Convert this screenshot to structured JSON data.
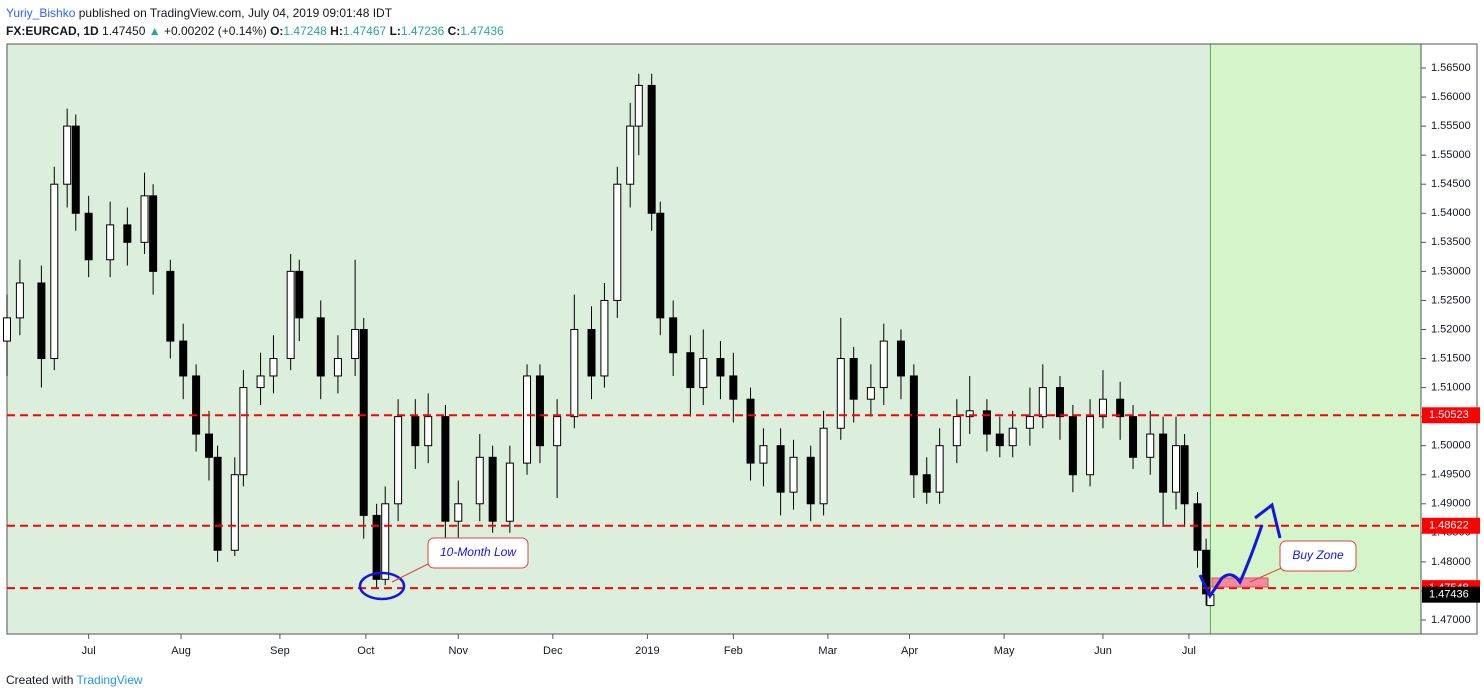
{
  "header": {
    "author": "Yuriy_Bishko",
    "published": "published on TradingView.com, July 04, 2019 09:01:48 IDT",
    "symbol": "FX:EURCAD, 1D",
    "last": "1.47450",
    "arrow": "▲",
    "change": "+0.00202 (+0.14%)",
    "open_label": "O:",
    "open": "1.47248",
    "high_label": "H:",
    "high": "1.47467",
    "low_label": "L:",
    "low": "1.47236",
    "close_label": "C:",
    "close": "1.47436"
  },
  "footer": {
    "text": "Created with",
    "brand": "TradingView"
  },
  "chart_data": {
    "type": "candlestick",
    "xlim": [
      0,
      329
    ],
    "xticks": [
      {
        "value": 19,
        "label": "Jul"
      },
      {
        "value": 40.5,
        "label": "Aug"
      },
      {
        "value": 63.5,
        "label": "Sep"
      },
      {
        "value": 83.5,
        "label": "Oct"
      },
      {
        "value": 105,
        "label": "Nov"
      },
      {
        "value": 127,
        "label": "Dec"
      },
      {
        "value": 149,
        "label": "2019"
      },
      {
        "value": 169,
        "label": "Feb"
      },
      {
        "value": 191,
        "label": "Mar"
      },
      {
        "value": 210,
        "label": "Apr"
      },
      {
        "value": 232,
        "label": "May"
      },
      {
        "value": 255,
        "label": "Jun"
      },
      {
        "value": 275,
        "label": "Jul"
      }
    ],
    "ylim": [
      1.46759,
      1.56913
    ],
    "yticks": [
      {
        "value": 1.47,
        "label": "1.47000"
      },
      {
        "value": 1.475,
        "label": "1.47500"
      },
      {
        "value": 1.48,
        "label": "1.48000"
      },
      {
        "value": 1.485,
        "label": "1.48500"
      },
      {
        "value": 1.49,
        "label": "1.49000"
      },
      {
        "value": 1.495,
        "label": "1.49500"
      },
      {
        "value": 1.5,
        "label": "1.50000"
      },
      {
        "value": 1.505,
        "label": "1.50500"
      },
      {
        "value": 1.51,
        "label": "1.51000"
      },
      {
        "value": 1.515,
        "label": "1.51500"
      },
      {
        "value": 1.52,
        "label": "1.52000"
      },
      {
        "value": 1.525,
        "label": "1.52500"
      },
      {
        "value": 1.53,
        "label": "1.53000"
      },
      {
        "value": 1.535,
        "label": "1.53500"
      },
      {
        "value": 1.54,
        "label": "1.54000"
      },
      {
        "value": 1.545,
        "label": "1.54500"
      },
      {
        "value": 1.55,
        "label": "1.55000"
      },
      {
        "value": 1.555,
        "label": "1.55500"
      },
      {
        "value": 1.56,
        "label": "1.56000"
      },
      {
        "value": 1.565,
        "label": "1.56500"
      }
    ],
    "up_color": "#ffffff",
    "down_color": "#000000",
    "wick_color": "#000000",
    "background": "#dcefdc",
    "future_background": "#d4f5c9",
    "level_color": "#ff0000",
    "levels": [
      1.50523,
      1.48622,
      1.47548
    ],
    "x": [
      0,
      3,
      8,
      11,
      14,
      16,
      19,
      24,
      28,
      32,
      34,
      38,
      41,
      44,
      47,
      49,
      53,
      55,
      59,
      62,
      66,
      68,
      73,
      77,
      81,
      83,
      86,
      88,
      91,
      95,
      98,
      102,
      105,
      110,
      113,
      117,
      121,
      124,
      128,
      132,
      136,
      139,
      142,
      145,
      147,
      150,
      152,
      155,
      159,
      162,
      166,
      169,
      173,
      176,
      180,
      183,
      187,
      190,
      194,
      197,
      201,
      204,
      208,
      211,
      214,
      217,
      221,
      224,
      228,
      231,
      234,
      238,
      241,
      245,
      248,
      252,
      255,
      259,
      262,
      266,
      269,
      272,
      274,
      277,
      279,
      280
    ],
    "open": [
      1.518,
      1.522,
      1.528,
      1.515,
      1.545,
      1.555,
      1.54,
      1.532,
      1.538,
      1.535,
      1.543,
      1.53,
      1.518,
      1.512,
      1.502,
      1.498,
      1.482,
      1.495,
      1.51,
      1.512,
      1.515,
      1.53,
      1.522,
      1.512,
      1.515,
      1.52,
      1.488,
      1.477,
      1.49,
      1.505,
      1.5,
      1.505,
      1.487,
      1.49,
      1.498,
      1.487,
      1.497,
      1.512,
      1.5,
      1.505,
      1.52,
      1.512,
      1.525,
      1.545,
      1.555,
      1.562,
      1.54,
      1.522,
      1.516,
      1.51,
      1.515,
      1.512,
      1.508,
      1.497,
      1.5,
      1.492,
      1.498,
      1.49,
      1.503,
      1.515,
      1.508,
      1.51,
      1.518,
      1.512,
      1.495,
      1.492,
      1.5,
      1.505,
      1.506,
      1.502,
      1.5,
      1.503,
      1.505,
      1.51,
      1.505,
      1.495,
      1.505,
      1.508,
      1.505,
      1.498,
      1.502,
      1.492,
      1.5,
      1.49,
      1.482,
      1.47248
    ],
    "high": [
      1.526,
      1.532,
      1.531,
      1.548,
      1.558,
      1.557,
      1.543,
      1.542,
      1.541,
      1.547,
      1.545,
      1.532,
      1.521,
      1.514,
      1.506,
      1.5,
      1.498,
      1.513,
      1.516,
      1.519,
      1.533,
      1.532,
      1.525,
      1.519,
      1.532,
      1.522,
      1.49,
      1.493,
      1.508,
      1.508,
      1.509,
      1.507,
      1.494,
      1.502,
      1.5,
      1.5,
      1.514,
      1.514,
      1.508,
      1.526,
      1.524,
      1.528,
      1.548,
      1.559,
      1.564,
      1.564,
      1.542,
      1.525,
      1.519,
      1.52,
      1.518,
      1.516,
      1.51,
      1.503,
      1.503,
      1.501,
      1.5,
      1.506,
      1.522,
      1.517,
      1.514,
      1.521,
      1.52,
      1.514,
      1.498,
      1.503,
      1.508,
      1.512,
      1.508,
      1.505,
      1.506,
      1.51,
      1.514,
      1.512,
      1.507,
      1.508,
      1.513,
      1.511,
      1.507,
      1.506,
      1.505,
      1.505,
      1.502,
      1.492,
      1.484,
      1.47467
    ],
    "low": [
      1.512,
      1.519,
      1.51,
      1.513,
      1.541,
      1.537,
      1.529,
      1.529,
      1.531,
      1.533,
      1.526,
      1.515,
      1.508,
      1.499,
      1.494,
      1.48,
      1.481,
      1.493,
      1.507,
      1.509,
      1.513,
      1.518,
      1.508,
      1.509,
      1.512,
      1.484,
      1.4755,
      1.476,
      1.487,
      1.496,
      1.497,
      1.484,
      1.484,
      1.487,
      1.485,
      1.485,
      1.495,
      1.497,
      1.491,
      1.503,
      1.508,
      1.51,
      1.522,
      1.541,
      1.55,
      1.537,
      1.519,
      1.512,
      1.505,
      1.507,
      1.508,
      1.504,
      1.494,
      1.493,
      1.488,
      1.489,
      1.487,
      1.488,
      1.501,
      1.504,
      1.505,
      1.507,
      1.508,
      1.491,
      1.49,
      1.49,
      1.497,
      1.502,
      1.499,
      1.498,
      1.498,
      1.5,
      1.503,
      1.501,
      1.492,
      1.493,
      1.503,
      1.501,
      1.496,
      1.495,
      1.486,
      1.489,
      1.486,
      1.479,
      1.4725,
      1.47236
    ],
    "close": [
      1.522,
      1.528,
      1.515,
      1.545,
      1.555,
      1.54,
      1.532,
      1.538,
      1.535,
      1.543,
      1.53,
      1.518,
      1.512,
      1.502,
      1.498,
      1.482,
      1.495,
      1.51,
      1.512,
      1.515,
      1.53,
      1.522,
      1.512,
      1.515,
      1.52,
      1.488,
      1.477,
      1.49,
      1.505,
      1.5,
      1.505,
      1.487,
      1.49,
      1.498,
      1.487,
      1.497,
      1.512,
      1.5,
      1.505,
      1.52,
      1.512,
      1.525,
      1.545,
      1.555,
      1.562,
      1.54,
      1.522,
      1.516,
      1.51,
      1.515,
      1.512,
      1.508,
      1.497,
      1.5,
      1.492,
      1.498,
      1.49,
      1.503,
      1.515,
      1.508,
      1.51,
      1.518,
      1.512,
      1.495,
      1.492,
      1.5,
      1.505,
      1.506,
      1.502,
      1.5,
      1.503,
      1.505,
      1.51,
      1.505,
      1.495,
      1.505,
      1.508,
      1.505,
      1.498,
      1.502,
      1.492,
      1.5,
      1.49,
      1.482,
      1.4745,
      1.47436
    ],
    "annotations": [
      "10-Month Low",
      "Buy Zone"
    ]
  }
}
